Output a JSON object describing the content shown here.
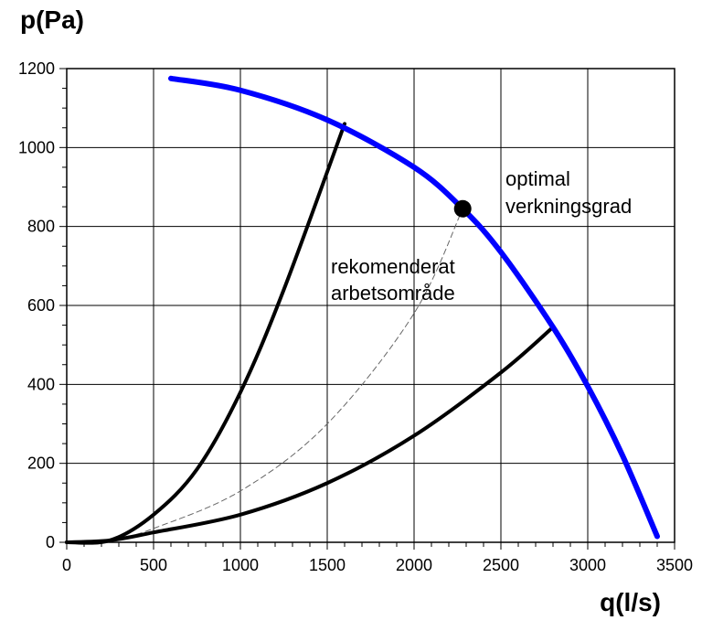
{
  "chart_data": {
    "type": "line",
    "title": "",
    "ylabel": "p(Pa)",
    "xlabel": "q(l/s)",
    "xlim": [
      0,
      3500
    ],
    "ylim": [
      0,
      1200
    ],
    "xticks": [
      0,
      500,
      1000,
      1500,
      2000,
      2500,
      3000,
      3500
    ],
    "yticks": [
      0,
      200,
      400,
      600,
      800,
      1000,
      1200
    ],
    "grid": true,
    "series": [
      {
        "color": "#0000ff",
        "x": [
          600,
          1000,
          1500,
          2000,
          2280,
          2500,
          2800,
          3000,
          3200,
          3400
        ],
        "y": [
          1175,
          1145,
          1070,
          950,
          845,
          735,
          545,
          395,
          220,
          15
        ]
      },
      {
        "color": "#000000",
        "x": [
          0,
          250,
          500,
          750,
          1000,
          1250,
          1600
        ],
        "y": [
          0,
          5,
          70,
          185,
          380,
          640,
          1060
        ]
      },
      {
        "color": "#000000",
        "x": [
          0,
          250,
          500,
          1000,
          1500,
          2000,
          2500,
          2800
        ],
        "y": [
          0,
          5,
          25,
          70,
          150,
          270,
          430,
          545
        ]
      },
      {
        "color": "#666666",
        "x": [
          250,
          500,
          1000,
          1500,
          2000,
          2280
        ],
        "y": [
          2,
          35,
          130,
          300,
          580,
          845
        ]
      }
    ],
    "points": [
      {
        "x": 2280,
        "y": 845,
        "label": "optimal"
      }
    ],
    "annotations": {
      "optimal_line1": "optimal",
      "optimal_line2": "verkningsgrad",
      "range_line1": "rekomenderat",
      "range_line2": "arbetsområde"
    }
  }
}
